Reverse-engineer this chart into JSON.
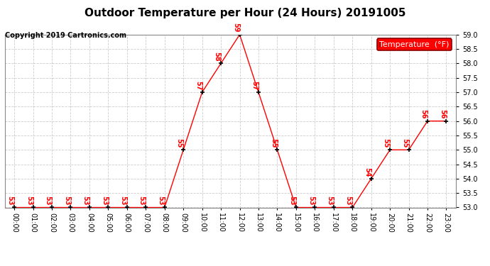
{
  "title": "Outdoor Temperature per Hour (24 Hours) 20191005",
  "copyright": "Copyright 2019 Cartronics.com",
  "legend_label": "Temperature  (°F)",
  "hours": [
    0,
    1,
    2,
    3,
    4,
    5,
    6,
    7,
    8,
    9,
    10,
    11,
    12,
    13,
    14,
    15,
    16,
    17,
    18,
    19,
    20,
    21,
    22,
    23
  ],
  "temperatures": [
    53,
    53,
    53,
    53,
    53,
    53,
    53,
    53,
    53,
    55,
    57,
    58,
    59,
    57,
    55,
    53,
    53,
    53,
    53,
    54,
    55,
    55,
    56,
    56
  ],
  "ylim": [
    53.0,
    59.0
  ],
  "line_color": "red",
  "marker_color": "black",
  "label_color": "red",
  "bg_color": "white",
  "grid_color": "#cccccc",
  "title_fontsize": 11,
  "copyright_fontsize": 7,
  "tick_label_fontsize": 7,
  "data_label_fontsize": 7,
  "legend_fontsize": 8
}
